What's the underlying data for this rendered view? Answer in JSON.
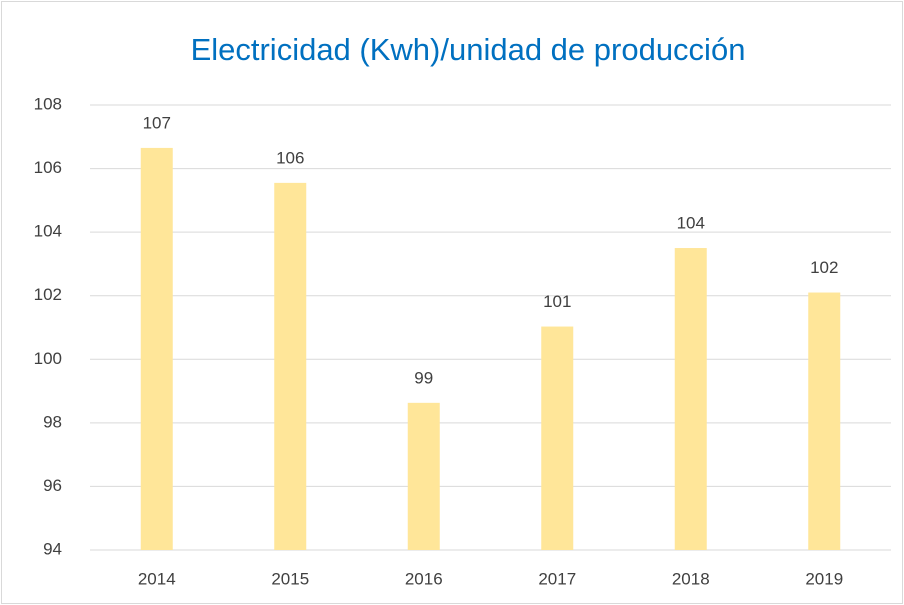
{
  "chart_data": {
    "type": "bar",
    "title": "Electricidad (Kwh)/unidad de producción",
    "categories": [
      "2014",
      "2015",
      "2016",
      "2017",
      "2018",
      "2019"
    ],
    "values": [
      106.65,
      105.55,
      98.63,
      101.03,
      103.5,
      102.1
    ],
    "value_labels": [
      "107",
      "106",
      "99",
      "101",
      "104",
      "102"
    ],
    "color": "#ffe699",
    "ylim": [
      94,
      108
    ],
    "yticks": [
      94,
      96,
      98,
      100,
      102,
      104,
      106,
      108
    ],
    "grid": true
  }
}
